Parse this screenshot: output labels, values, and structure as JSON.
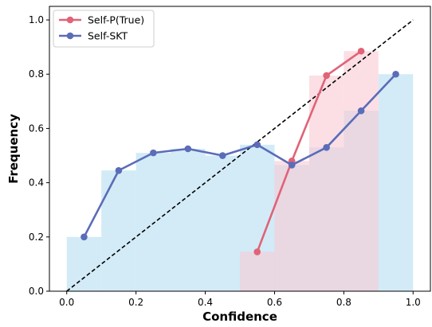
{
  "chart_data": {
    "type": "line",
    "xlabel": "Confidence",
    "ylabel": "Frequency",
    "xlim": [
      -0.05,
      1.05
    ],
    "ylim": [
      0.0,
      1.05
    ],
    "x_ticks": [
      "0.0",
      "0.2",
      "0.4",
      "0.6",
      "0.8",
      "1.0"
    ],
    "y_ticks": [
      "0.0",
      "0.2",
      "0.4",
      "0.6",
      "0.8",
      "1.0"
    ],
    "grid": false,
    "legend_position": "top-left",
    "diagonal": {
      "from": [
        0,
        0
      ],
      "to": [
        1,
        1
      ],
      "style": "dashed",
      "color": "#000000"
    },
    "series": [
      {
        "name": "Self-P(True)",
        "color": "#e06377",
        "bar_color": "#f9c9d4",
        "x": [
          0.55,
          0.65,
          0.75,
          0.85
        ],
        "y": [
          0.145,
          0.48,
          0.795,
          0.885
        ],
        "bars": {
          "left": [
            0.5,
            0.6,
            0.7,
            0.8
          ],
          "width": 0.1,
          "heights": [
            0.145,
            0.48,
            0.795,
            0.885
          ]
        }
      },
      {
        "name": "Self-SKT",
        "color": "#5b6cb8",
        "bar_color": "#a6d8ef",
        "x": [
          0.05,
          0.15,
          0.25,
          0.35,
          0.45,
          0.55,
          0.65,
          0.75,
          0.85,
          0.95
        ],
        "y": [
          0.2,
          0.445,
          0.51,
          0.525,
          0.5,
          0.54,
          0.465,
          0.53,
          0.665,
          0.8
        ],
        "bars": {
          "left": [
            0.0,
            0.1,
            0.2,
            0.3,
            0.4,
            0.5,
            0.6,
            0.7,
            0.8,
            0.9
          ],
          "width": 0.1,
          "heights": [
            0.2,
            0.445,
            0.51,
            0.525,
            0.5,
            0.54,
            0.465,
            0.53,
            0.665,
            0.8
          ]
        }
      }
    ]
  }
}
